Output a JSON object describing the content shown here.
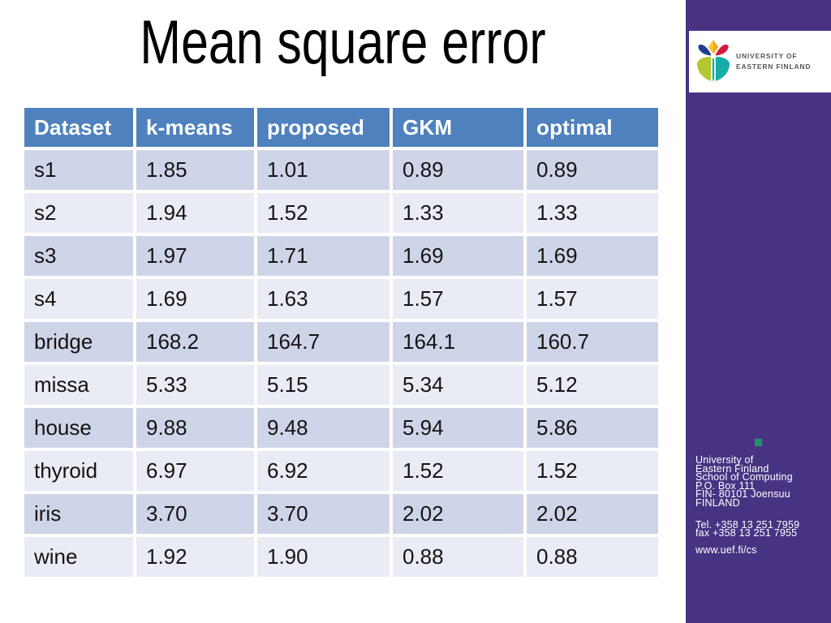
{
  "title": "Mean square error",
  "table": {
    "headers": [
      "Dataset",
      "k-means",
      "proposed",
      "GKM",
      "optimal"
    ],
    "rows": [
      {
        "name": "s1",
        "values": [
          "1.85",
          "1.01",
          "0.89",
          "0.89"
        ]
      },
      {
        "name": "s2",
        "values": [
          "1.94",
          "1.52",
          "1.33",
          "1.33"
        ]
      },
      {
        "name": "s3",
        "values": [
          "1.97",
          "1.71",
          "1.69",
          "1.69"
        ]
      },
      {
        "name": "s4",
        "values": [
          "1.69",
          "1.63",
          "1.57",
          "1.57"
        ]
      },
      {
        "name": "bridge",
        "values": [
          "168.2",
          "164.7",
          "164.1",
          "160.7"
        ]
      },
      {
        "name": "missa",
        "values": [
          "5.33",
          "5.15",
          "5.34",
          "5.12"
        ]
      },
      {
        "name": "house",
        "values": [
          "9.88",
          "9.48",
          "5.94",
          "5.86"
        ]
      },
      {
        "name": "thyroid",
        "values": [
          "6.97",
          "6.92",
          "1.52",
          "1.52"
        ]
      },
      {
        "name": "iris",
        "values": [
          "3.70",
          "3.70",
          "2.02",
          "2.02"
        ]
      },
      {
        "name": "wine",
        "values": [
          "1.92",
          "1.90",
          "0.88",
          "0.88"
        ]
      }
    ]
  },
  "sidebar": {
    "logo": {
      "line1": "UNIVERSITY OF",
      "line2": "EASTERN FINLAND"
    },
    "address_lines": [
      "University of",
      "Eastern Finland",
      "School of Computing",
      "P.O. Box 111",
      "FIN- 80101 Joensuu",
      "FINLAND"
    ],
    "tel_lines": [
      "Tel. +358 13 251 7959",
      "fax  +358 13 251 7955"
    ],
    "url": "www.uef.fi/cs"
  },
  "colors": {
    "sidebar_purple": "#483383",
    "header_blue": "#4e81bd",
    "row_dark": "#cfd5e8",
    "row_light": "#e9ebf5",
    "green_square": "#1e9668",
    "logo_orange": "#f2a71c",
    "logo_blue": "#1f3c8f",
    "logo_red": "#d6173e",
    "logo_lime": "#b2c831",
    "logo_teal": "#16ada9"
  }
}
